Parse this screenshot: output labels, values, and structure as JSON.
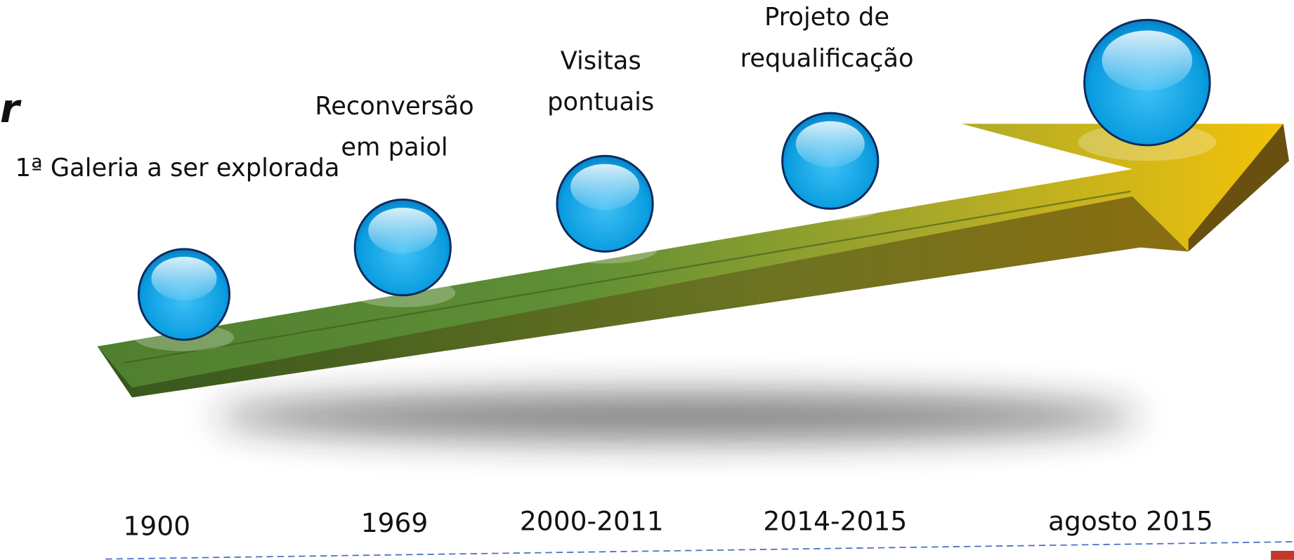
{
  "fragment": "r",
  "events": [
    {
      "label_lines": [
        "1ª Galeria a ser explorada"
      ],
      "date": "1900"
    },
    {
      "label_lines": [
        "Reconversão",
        "em paiol"
      ],
      "date": "1969"
    },
    {
      "label_lines": [
        "Visitas",
        "pontuais"
      ],
      "date": "2000-2011"
    },
    {
      "label_lines": [
        "Projeto de",
        "requalificação"
      ],
      "date": "2014-2015"
    },
    {
      "label_lines": [],
      "date": "agosto 2015"
    }
  ]
}
